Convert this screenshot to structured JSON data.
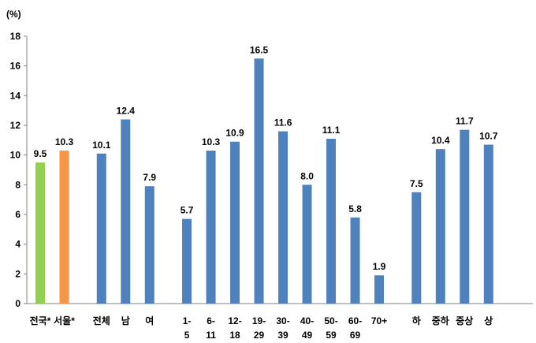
{
  "chart_data": {
    "type": "bar",
    "ylabel": "(%)",
    "ylim": [
      0,
      18
    ],
    "yticks": [
      0,
      2,
      4,
      6,
      8,
      10,
      12,
      14,
      16,
      18
    ],
    "grid": false,
    "legend": "none",
    "colors": {
      "green": "#92d050",
      "orange": "#f79646",
      "blue": "#4f81bd",
      "axis": "#808080"
    },
    "categories": [
      [
        "전국*"
      ],
      [
        "서울*"
      ],
      [
        "전체"
      ],
      [
        "남"
      ],
      [
        "여"
      ],
      [
        "1-",
        "5"
      ],
      [
        "6-",
        "11"
      ],
      [
        "12-",
        "18"
      ],
      [
        "19-",
        "29"
      ],
      [
        "30-",
        "39"
      ],
      [
        "40-",
        "49"
      ],
      [
        "50-",
        "59"
      ],
      [
        "60-",
        "69"
      ],
      [
        "70+"
      ],
      [
        "하"
      ],
      [
        "중하"
      ],
      [
        "중상"
      ],
      [
        "상"
      ]
    ],
    "values": [
      9.5,
      10.3,
      10.1,
      12.4,
      7.9,
      5.7,
      10.3,
      10.9,
      16.5,
      11.6,
      8.0,
      11.1,
      5.8,
      1.9,
      7.5,
      10.4,
      11.7,
      10.7
    ],
    "value_labels": [
      "9.5",
      "10.3",
      "10.1",
      "12.4",
      "7.9",
      "5.7",
      "10.3",
      "10.9",
      "16.5",
      "11.6",
      "8.0",
      "11.1",
      "5.8",
      "1.9",
      "7.5",
      "10.4",
      "11.7",
      "10.7"
    ],
    "bar_colors": [
      "green",
      "orange",
      "blue",
      "blue",
      "blue",
      "blue",
      "blue",
      "blue",
      "blue",
      "blue",
      "blue",
      "blue",
      "blue",
      "blue",
      "blue",
      "blue",
      "blue",
      "blue"
    ],
    "groups": [
      [
        0,
        1
      ],
      [
        2,
        3,
        4
      ],
      [
        5,
        6,
        7,
        8,
        9,
        10,
        11,
        12,
        13
      ],
      [
        14,
        15,
        16,
        17
      ]
    ]
  }
}
